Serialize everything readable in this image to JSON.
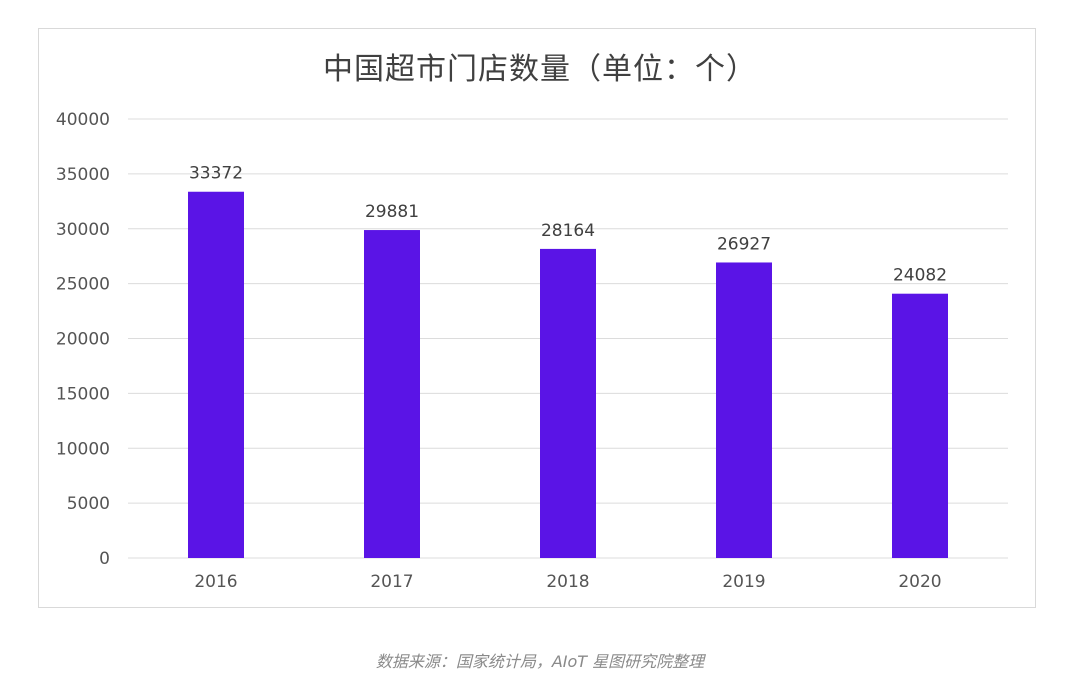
{
  "chart_data": {
    "type": "bar",
    "title": "中国超市门店数量（单位：个）",
    "categories": [
      "2016",
      "2017",
      "2018",
      "2019",
      "2020"
    ],
    "values": [
      33372,
      29881,
      28164,
      26927,
      24082
    ],
    "xlabel": "",
    "ylabel": "",
    "ylim": [
      0,
      40000
    ],
    "yticks": [
      0,
      5000,
      10000,
      15000,
      20000,
      25000,
      30000,
      35000,
      40000
    ],
    "grid": true,
    "bar_color": "#5a14e6",
    "source": "数据来源：国家统计局，AIoT 星图研究院整理"
  }
}
